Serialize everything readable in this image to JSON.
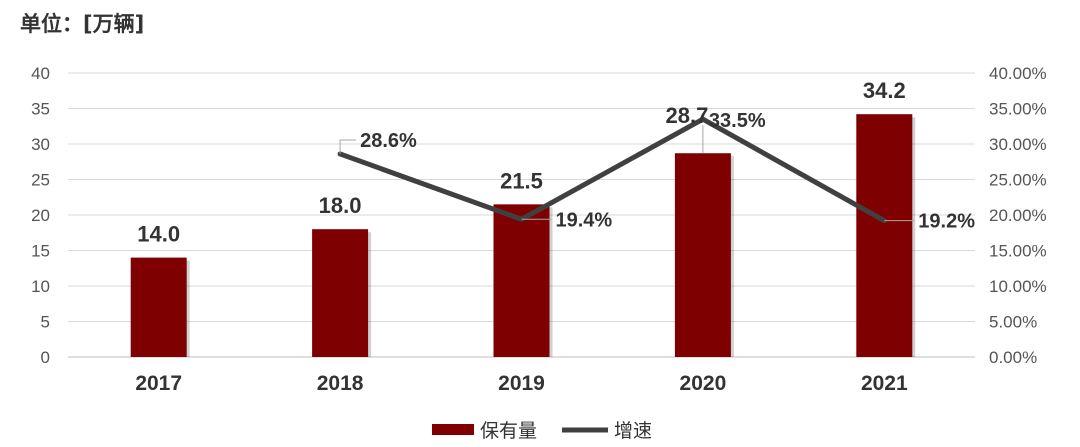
{
  "unit_label": "单位：[万辆]",
  "chart_data": {
    "type": "bar",
    "categories": [
      "2017",
      "2018",
      "2019",
      "2020",
      "2021"
    ],
    "series": [
      {
        "name": "保有量",
        "type": "bar",
        "axis": "left",
        "values": [
          14.0,
          18.0,
          21.5,
          28.7,
          34.2
        ],
        "labels": [
          "14.0",
          "18.0",
          "21.5",
          "28.7",
          "34.2"
        ],
        "color": "#7f0000"
      },
      {
        "name": "增速",
        "type": "line",
        "axis": "right",
        "values": [
          null,
          28.6,
          19.4,
          33.5,
          19.2
        ],
        "labels": [
          "",
          "28.6%",
          "19.4%",
          "33.5%",
          "19.2%"
        ],
        "color": "#404040"
      }
    ],
    "y_left": {
      "ylim": [
        0,
        40
      ],
      "ticks": [
        "0",
        "5",
        "10",
        "15",
        "20",
        "25",
        "30",
        "35",
        "40"
      ]
    },
    "y_right": {
      "ylim": [
        0,
        40
      ],
      "ticks": [
        "0.00%",
        "5.00%",
        "10.00%",
        "15.00%",
        "20.00%",
        "25.00%",
        "30.00%",
        "35.00%",
        "40.00%"
      ]
    },
    "grid": true,
    "legend_position": "bottom"
  }
}
